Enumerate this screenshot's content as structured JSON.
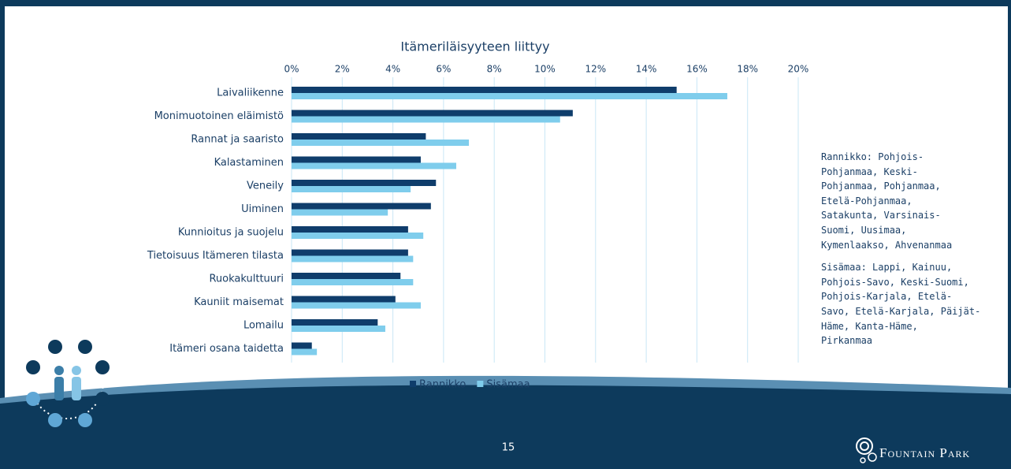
{
  "chart_data": {
    "type": "bar",
    "title": "Itämeriläisyyteen liittyy",
    "categories": [
      "Laivaliikenne",
      "Monimuotoinen eläimistö",
      "Rannat ja saaristo",
      "Kalastaminen",
      "Veneily",
      "Uiminen",
      "Kunnioitus ja suojelu",
      "Tietoisuus Itämeren tilasta",
      "Ruokakulttuuri",
      "Kauniit maisemat",
      "Lomailu",
      "Itämeri osana taidetta"
    ],
    "series": [
      {
        "name": "Rannikko",
        "color": "#0f3d6b",
        "values": [
          15.2,
          11.1,
          5.3,
          5.1,
          5.7,
          5.5,
          4.6,
          4.6,
          4.3,
          4.1,
          3.4,
          0.8
        ]
      },
      {
        "name": "Sisämaa",
        "color": "#7fcdec",
        "values": [
          17.2,
          10.6,
          7.0,
          6.5,
          4.7,
          3.8,
          5.2,
          4.8,
          4.8,
          5.1,
          3.7,
          1.0
        ]
      }
    ],
    "xlim": [
      0,
      20
    ],
    "xticks": [
      {
        "value": 0,
        "label": "0%"
      },
      {
        "value": 2,
        "label": "2%"
      },
      {
        "value": 4,
        "label": "4%"
      },
      {
        "value": 6,
        "label": "6%"
      },
      {
        "value": 8,
        "label": "8%"
      },
      {
        "value": 10,
        "label": "10%"
      },
      {
        "value": 12,
        "label": "12%"
      },
      {
        "value": 14,
        "label": "14%"
      },
      {
        "value": 16,
        "label": "16%"
      },
      {
        "value": 18,
        "label": "18%"
      },
      {
        "value": 20,
        "label": "20%"
      }
    ],
    "grid": true,
    "legend": "bottom"
  },
  "notes": [
    [
      "Rannikko: Pohjois-",
      "Pohjanmaa, Keski-",
      "Pohjanmaa, Pohjanmaa,",
      "Etelä-Pohjanmaa,",
      "Satakunta, Varsinais-",
      "Suomi, Uusimaa,",
      "Kymenlaakso, Ahvenanmaa"
    ],
    [
      "Sisämaa: Lappi, Kainuu,",
      "Pohjois-Savo, Keski-Suomi,",
      "Pohjois-Karjala, Etelä-",
      "Savo, Etelä-Karjala, Päijät-",
      "Häme, Kanta-Häme,",
      "Pirkanmaa"
    ]
  ],
  "page_number": "15",
  "logo": "Fountain Park"
}
